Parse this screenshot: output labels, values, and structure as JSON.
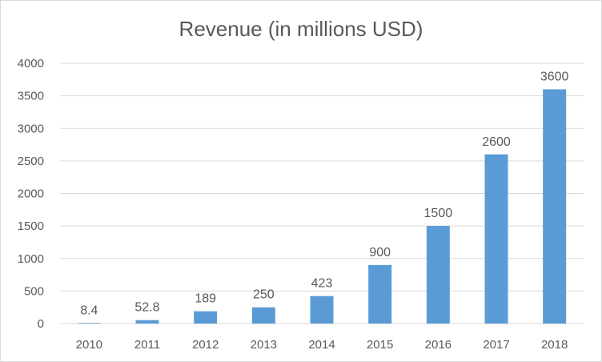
{
  "chart_data": {
    "type": "bar",
    "title": "Revenue (in millions USD)",
    "xlabel": "",
    "ylabel": "",
    "categories": [
      "2010",
      "2011",
      "2012",
      "2013",
      "2014",
      "2015",
      "2016",
      "2017",
      "2018"
    ],
    "values": [
      8.4,
      52.8,
      189,
      250,
      423,
      900,
      1500,
      2600,
      3600
    ],
    "data_labels": [
      "8.4",
      "52.8",
      "189",
      "250",
      "423",
      "900",
      "1500",
      "2600",
      "3600"
    ],
    "ylim": [
      0,
      4000
    ],
    "yticks": [
      0,
      500,
      1000,
      1500,
      2000,
      2500,
      3000,
      3500,
      4000
    ],
    "grid": true,
    "legend": "none",
    "colors": {
      "bar": "#5b9bd5",
      "grid": "#d9d9d9",
      "text": "#595959",
      "title": "#595959"
    }
  }
}
